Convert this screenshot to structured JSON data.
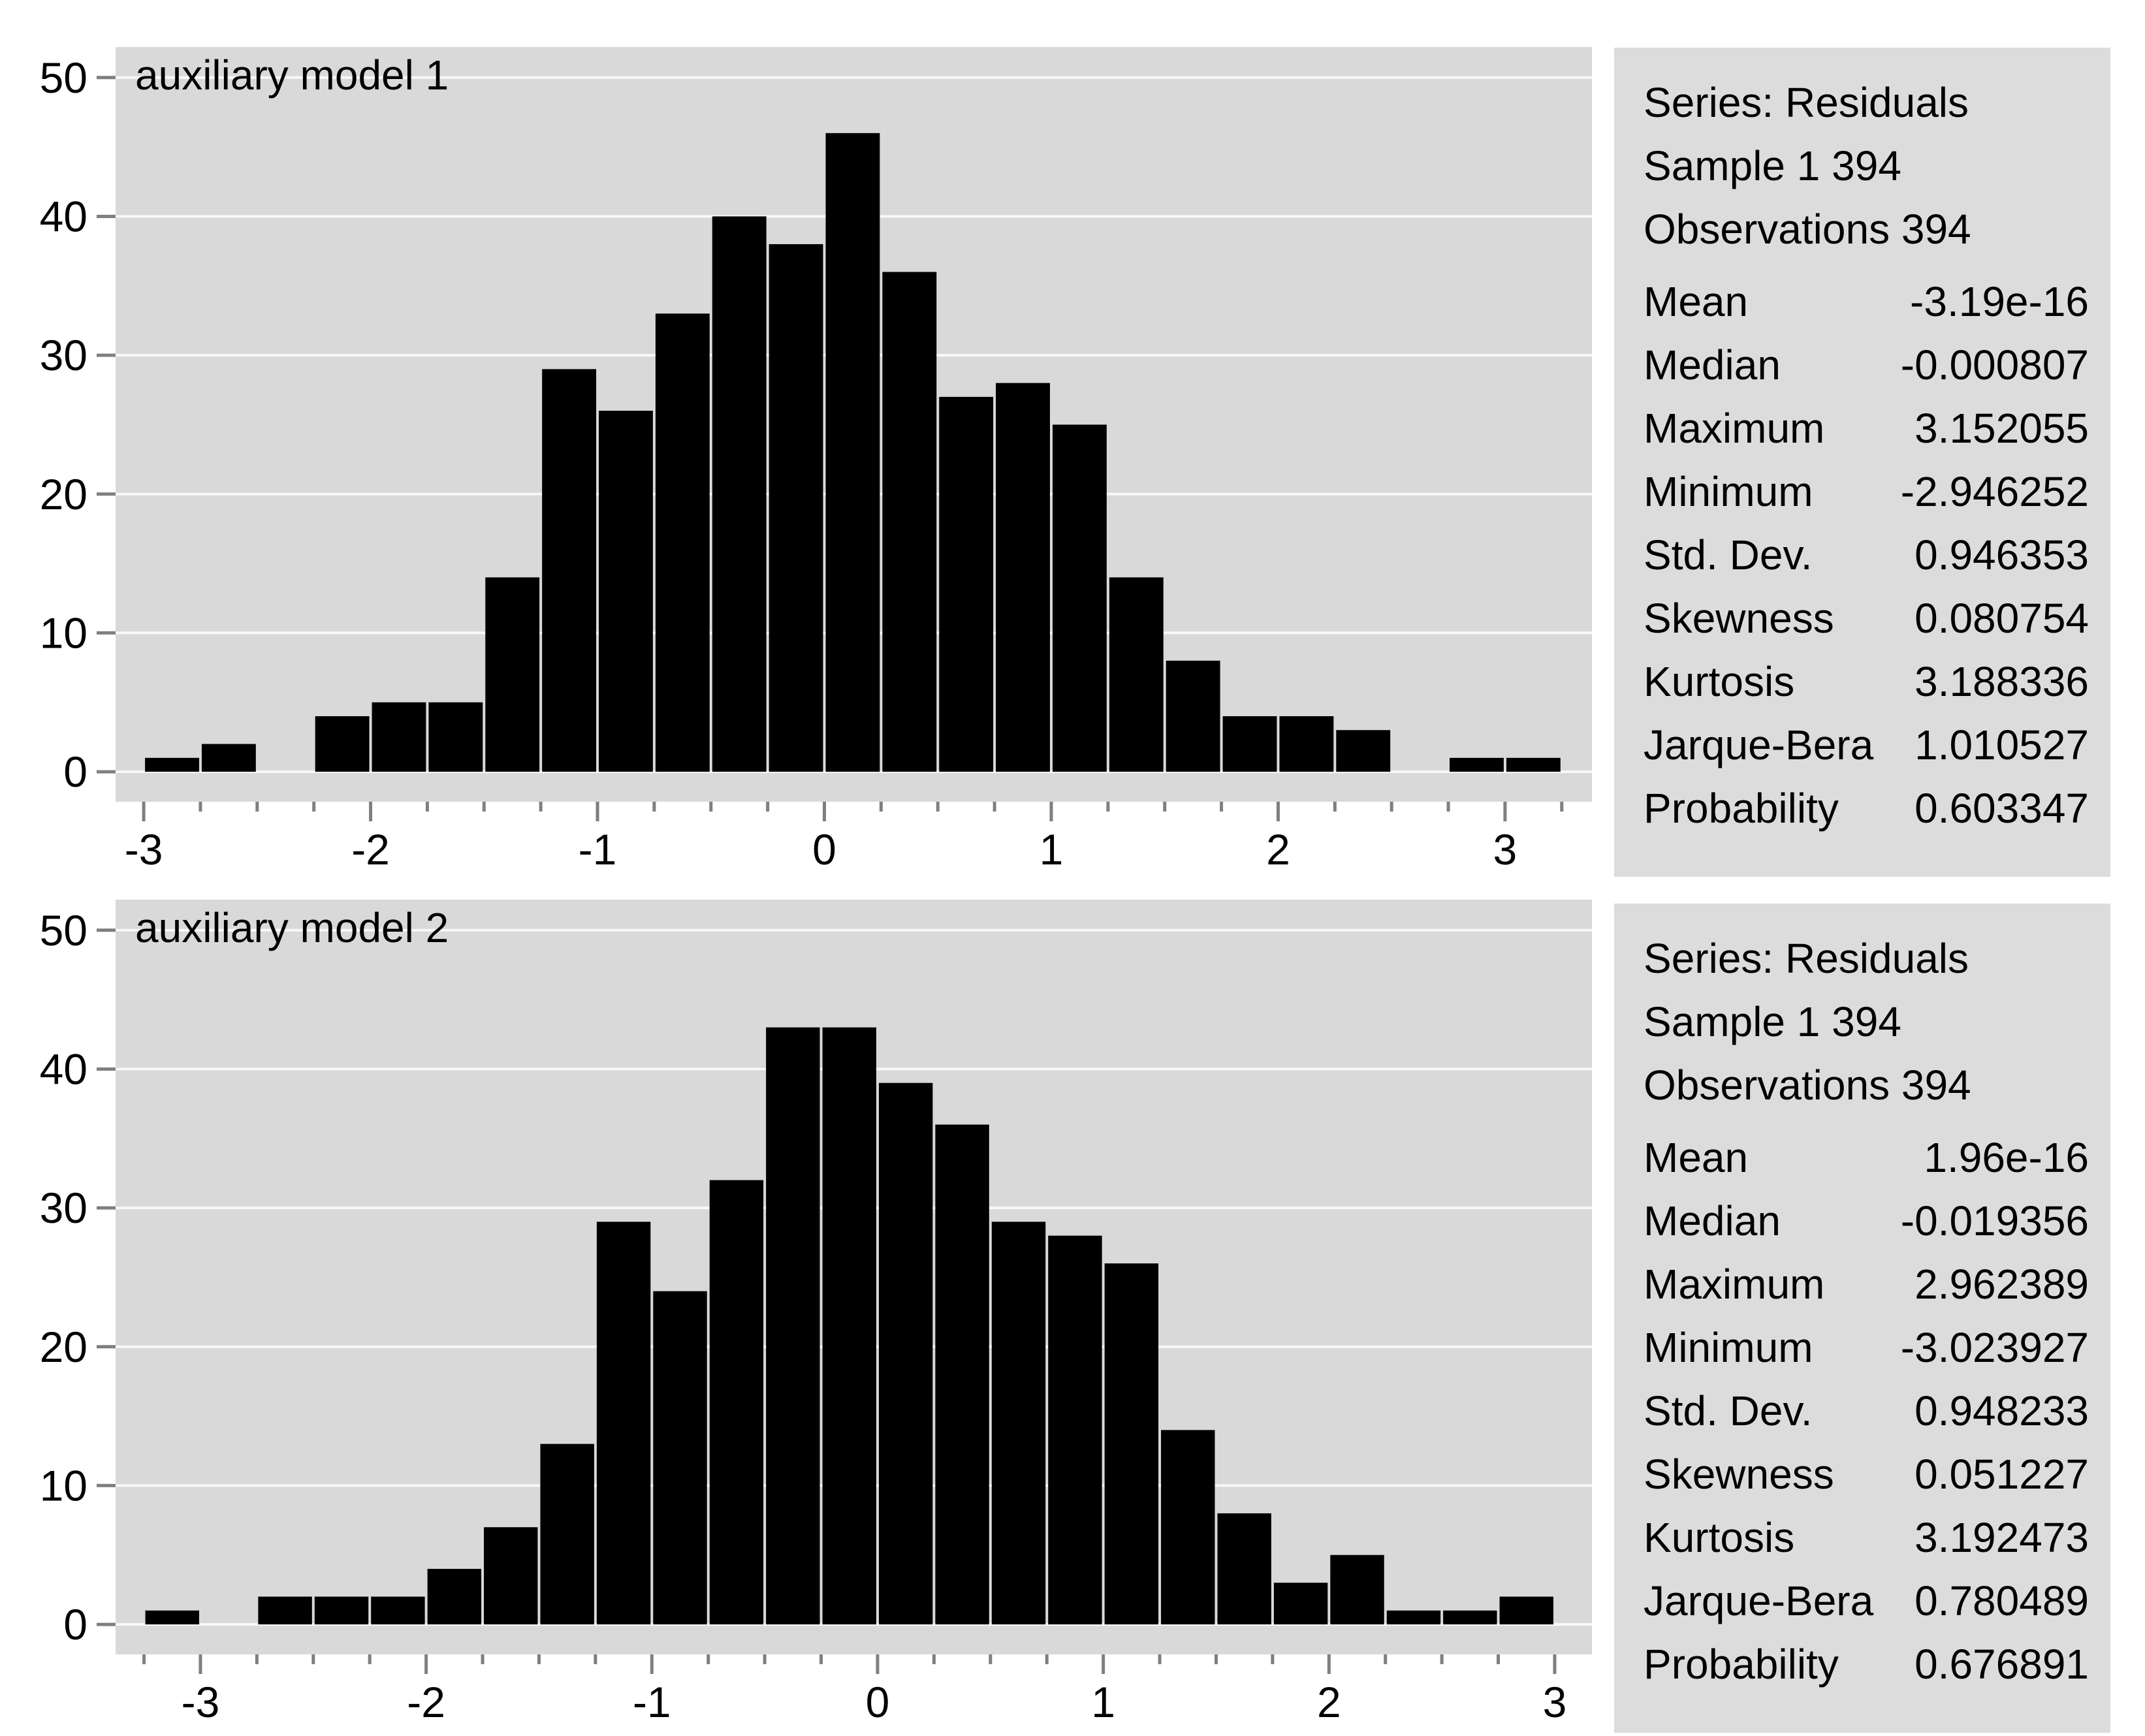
{
  "figure": {
    "background": "#ffffff"
  },
  "chart_data": [
    {
      "type": "bar",
      "subtype": "histogram",
      "title": "auxiliary model 1",
      "bin_start": -3.0,
      "bin_width": 0.25,
      "counts": [
        1,
        2,
        0,
        4,
        5,
        5,
        14,
        29,
        26,
        33,
        40,
        38,
        46,
        36,
        27,
        28,
        25,
        14,
        8,
        4,
        4,
        3,
        0,
        1,
        1
      ],
      "x_tick_labels": [
        -3,
        -2,
        -1,
        0,
        1,
        2,
        3
      ],
      "y_ticks": [
        0,
        10,
        20,
        30,
        40,
        50
      ],
      "xlim": [
        -3.124,
        3.383
      ],
      "ylim": [
        -2.16,
        52.2
      ],
      "grid": "horizontal",
      "legend": "none",
      "colors": {
        "bar": "#000000",
        "plot_bg": "#d9d9d9",
        "grid": "#f8f8f8",
        "tick": "#7f7f7f",
        "text": "#000000"
      },
      "stats_panel": {
        "lines": [
          "Series: Residuals",
          "Sample 1 394",
          "Observations 394"
        ],
        "rows": [
          {
            "label": "Mean",
            "value": "-3.19e-16"
          },
          {
            "label": "Median",
            "value": "-0.000807"
          },
          {
            "label": "Maximum",
            "value": "3.152055"
          },
          {
            "label": "Minimum",
            "value": "-2.946252"
          },
          {
            "label": "Std. Dev.",
            "value": "0.946353"
          },
          {
            "label": "Skewness",
            "value": "0.080754"
          },
          {
            "label": "Kurtosis",
            "value": "3.188336"
          },
          {
            "label": "Jarque-Bera",
            "value": "1.010527"
          },
          {
            "label": "Probability",
            "value": "0.603347"
          }
        ]
      }
    },
    {
      "type": "bar",
      "subtype": "histogram",
      "title": "auxiliary model 2",
      "bin_start": -3.25,
      "bin_width": 0.25,
      "counts": [
        1,
        0,
        2,
        2,
        2,
        4,
        7,
        13,
        29,
        24,
        32,
        43,
        43,
        39,
        36,
        29,
        28,
        26,
        14,
        8,
        3,
        5,
        1,
        1,
        2
      ],
      "x_tick_labels": [
        -3,
        -2,
        -1,
        0,
        1,
        2,
        3
      ],
      "y_ticks": [
        0,
        10,
        20,
        30,
        40,
        50
      ],
      "xlim": [
        -3.376,
        3.165
      ],
      "ylim": [
        -2.16,
        52.2
      ],
      "grid": "horizontal",
      "legend": "none",
      "colors": {
        "bar": "#000000",
        "plot_bg": "#d9d9d9",
        "grid": "#f8f8f8",
        "tick": "#7f7f7f",
        "text": "#000000"
      },
      "stats_panel": {
        "lines": [
          "Series: Residuals",
          "Sample 1 394",
          "Observations 394"
        ],
        "rows": [
          {
            "label": "Mean",
            "value": "1.96e-16"
          },
          {
            "label": "Median",
            "value": "-0.019356"
          },
          {
            "label": "Maximum",
            "value": "2.962389"
          },
          {
            "label": "Minimum",
            "value": "-3.023927"
          },
          {
            "label": "Std. Dev.",
            "value": "0.948233"
          },
          {
            "label": "Skewness",
            "value": "0.051227"
          },
          {
            "label": "Kurtosis",
            "value": "3.192473"
          },
          {
            "label": "Jarque-Bera",
            "value": "0.780489"
          },
          {
            "label": "Probability",
            "value": "0.676891"
          }
        ]
      }
    }
  ]
}
